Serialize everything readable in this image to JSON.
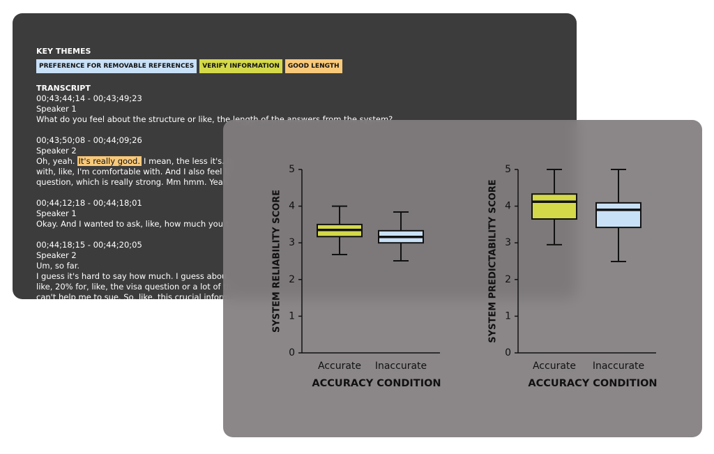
{
  "key_themes": {
    "title": "KEY THEMES",
    "tags": [
      {
        "label": "PREFERENCE FOR REMOVABLE REFERENCES",
        "color": "#c9e1f7"
      },
      {
        "label": "VERIFY INFORMATION",
        "color": "#d4d94a"
      },
      {
        "label": "GOOD LENGTH",
        "color": "#f9c97a"
      }
    ]
  },
  "transcript": {
    "title": "TRANSCRIPT",
    "highlight_color": "#f9c97a",
    "entries": [
      {
        "time": "00;43;44;14 - 00;43;49;23",
        "speaker": "Speaker 1",
        "lines": [
          "What do you feel about the structure or like, the length of the answers from the system?"
        ]
      },
      {
        "time": "00;43;50;08 - 00;44;09;26",
        "speaker": "Speaker 2",
        "lines": [
          {
            "text": "Oh, yeah.",
            "highlight": "It's really good.",
            "after": "I mean, the less it's. It"
          },
          "with, like, I'm comfortable with. And I also feel li",
          "question, which is really strong. Mm hmm. Yeah"
        ]
      },
      {
        "time": "00;44;12;18 - 00;44;18;01",
        "speaker": "Speaker 1",
        "lines": [
          "Okay. And I wanted to ask, like, how much you t"
        ]
      },
      {
        "time": "00;44;18;15 - 00;44;20;05",
        "speaker": "Speaker 2",
        "lines": [
          "Um, so far.",
          "I guess it's hard to say how much. I guess abou",
          "like, 20% for, like, the visa question or a lot of th",
          "can't help me to sue. So, like, this crucial inform"
        ]
      }
    ]
  },
  "chart_data": [
    {
      "type": "box",
      "ylabel": "SYSTEM RELIABILITY SCORE",
      "xlabel": "ACCURACY CONDITION",
      "categories": [
        "Accurate",
        "Inaccurate"
      ],
      "colors": [
        "#d4d94a",
        "#c9e1f7"
      ],
      "whisker_low": [
        2.68,
        2.51
      ],
      "q1": [
        3.17,
        3.0
      ],
      "median": [
        3.35,
        3.16
      ],
      "q3": [
        3.5,
        3.33
      ],
      "whisker_high": [
        4.0,
        3.84
      ],
      "ylim": [
        0,
        5
      ],
      "yticks": [
        0,
        1,
        2,
        3,
        4,
        5
      ]
    },
    {
      "type": "box",
      "ylabel": "SYSTEM PREDICTABILITY SCORE",
      "xlabel": "ACCURACY CONDITION",
      "categories": [
        "Accurate",
        "Inaccurate"
      ],
      "colors": [
        "#d4d94a",
        "#c9e1f7"
      ],
      "whisker_low": [
        2.95,
        2.49
      ],
      "q1": [
        3.65,
        3.42
      ],
      "median": [
        4.12,
        3.9
      ],
      "q3": [
        4.33,
        4.09
      ],
      "whisker_high": [
        5.0,
        5.0
      ],
      "ylim": [
        0,
        5
      ],
      "yticks": [
        0,
        1,
        2,
        3,
        4,
        5
      ]
    }
  ]
}
